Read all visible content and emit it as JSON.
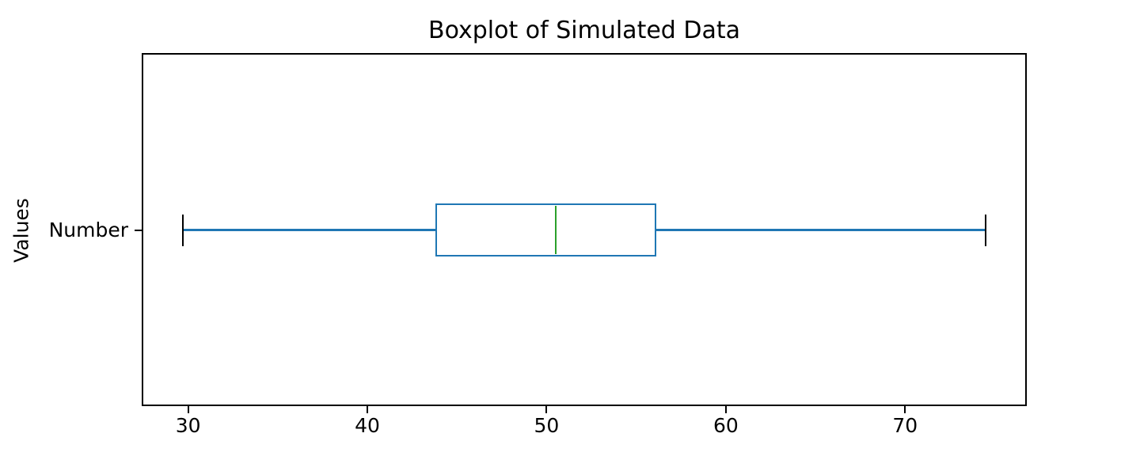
{
  "chart_data": {
    "type": "boxplot",
    "orientation": "horizontal",
    "title": "Boxplot of Simulated Data",
    "xlabel": "",
    "ylabel": "Values",
    "categories": [
      "Number"
    ],
    "series": [
      {
        "name": "Number",
        "whisker_low": 29.7,
        "q1": 43.8,
        "median": 50.5,
        "q3": 56.1,
        "whisker_high": 74.5,
        "outliers": []
      }
    ],
    "x_ticks": [
      30,
      40,
      50,
      60,
      70
    ],
    "xlim": [
      27.5,
      76.7
    ],
    "grid": false,
    "legend_position": "none",
    "colors": {
      "box": "#1f77b4",
      "whisker": "#1f77b4",
      "cap": "#000000",
      "median": "#2ca02c",
      "spine": "#000000",
      "text": "#000000",
      "background": "#ffffff"
    }
  }
}
